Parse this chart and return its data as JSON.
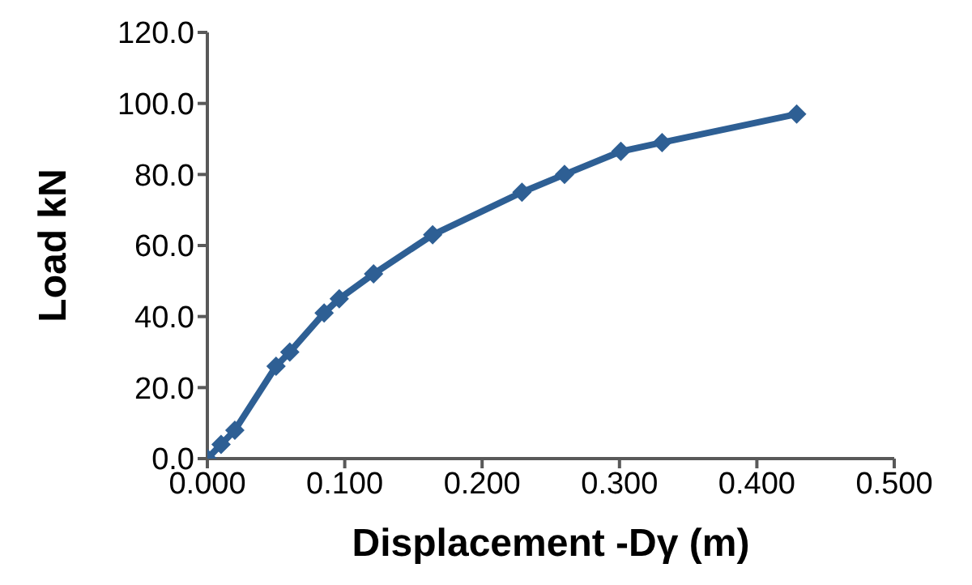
{
  "chart_data": {
    "type": "line",
    "xlabel": "Displacement -Dγ (m)",
    "ylabel": "Load kN",
    "x": [
      0,
      0.01,
      0.02,
      0.05,
      0.06,
      0.085,
      0.096,
      0.121,
      0.164,
      0.229,
      0.26,
      0.301,
      0.331,
      0.429
    ],
    "series": [
      {
        "color": "#2e5f94",
        "values": [
          0,
          4,
          8,
          26,
          30,
          41,
          45,
          52,
          63,
          75,
          80,
          86.5,
          89,
          97
        ]
      }
    ],
    "xlim": [
      0,
      0.5
    ],
    "xticks": [
      {
        "value": 0,
        "label": "0.000"
      },
      {
        "value": 0.1,
        "label": "0.100"
      },
      {
        "value": 0.2,
        "label": "0.200"
      },
      {
        "value": 0.3,
        "label": "0.300"
      },
      {
        "value": 0.4,
        "label": "0.400"
      },
      {
        "value": 0.5,
        "label": "0.500"
      }
    ],
    "ylim": [
      0,
      120
    ],
    "yticks": [
      {
        "value": 0,
        "label": "0.0"
      },
      {
        "value": 20,
        "label": "20.0"
      },
      {
        "value": 40,
        "label": "40.0"
      },
      {
        "value": 60,
        "label": "60.0"
      },
      {
        "value": 80,
        "label": "80.0"
      },
      {
        "value": 100,
        "label": "100.0"
      },
      {
        "value": 120,
        "label": "120.0"
      }
    ],
    "grid": false,
    "legend": false,
    "marker": "diamond",
    "line_style": "solid"
  }
}
